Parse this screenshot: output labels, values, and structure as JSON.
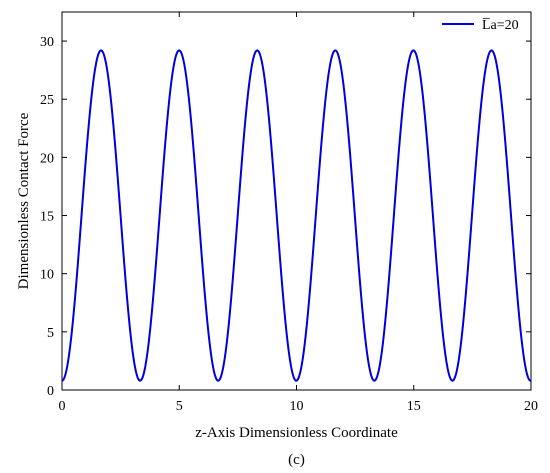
{
  "chart_data": {
    "type": "line",
    "title": "",
    "xlabel": "z-Axis Dimensionless Coordinate",
    "ylabel": "Dimensionless Contact Force",
    "xlim": [
      0,
      20
    ],
    "ylim": [
      0,
      32.5
    ],
    "xticks": [
      0,
      5,
      10,
      15,
      20
    ],
    "yticks": [
      0,
      5,
      10,
      15,
      20,
      25,
      30
    ],
    "grid": false,
    "legend_position": "top-right",
    "series": [
      {
        "name": "L̅a=20",
        "color": "#0000dd",
        "function": "periodic",
        "period": 3.33,
        "min": 0.8,
        "max": 29.2,
        "first_peak_x": 1.67,
        "peaks_x": [
          1.67,
          5.0,
          8.33,
          11.67,
          15.0,
          18.33
        ],
        "troughs_x": [
          0,
          3.33,
          6.67,
          10.0,
          13.33,
          16.67,
          20.0
        ]
      }
    ]
  },
  "caption": "(c)",
  "colors": {
    "line": "#0000dd",
    "axis": "#000000"
  }
}
